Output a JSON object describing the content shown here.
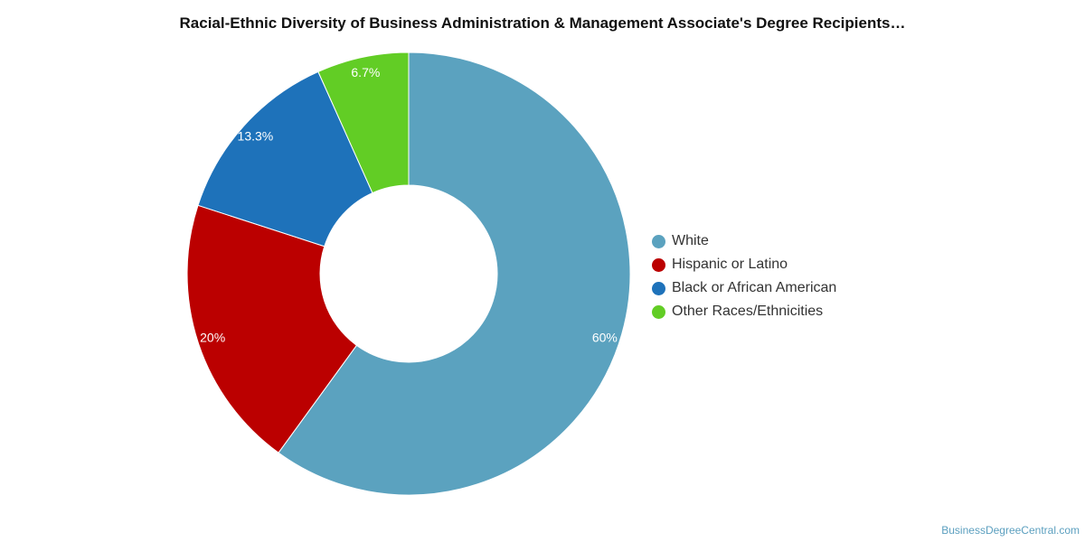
{
  "chart_data": {
    "type": "pie",
    "title": "Racial-Ethnic Diversity of Business Administration & Management Associate's Degree Recipients…",
    "slices": [
      {
        "name": "White",
        "value": 60,
        "label": "60%",
        "color": "#5ba2bf"
      },
      {
        "name": "Hispanic or Latino",
        "value": 20,
        "label": "20%",
        "color": "#bb0000"
      },
      {
        "name": "Black or African American",
        "value": 13.3,
        "label": "13.3%",
        "color": "#1e72ba"
      },
      {
        "name": "Other Races/Ethnicities",
        "value": 6.7,
        "label": "6.7%",
        "color": "#62cd25"
      }
    ],
    "donut": true,
    "legend_position": "right"
  },
  "credit": "BusinessDegreeCentral.com"
}
